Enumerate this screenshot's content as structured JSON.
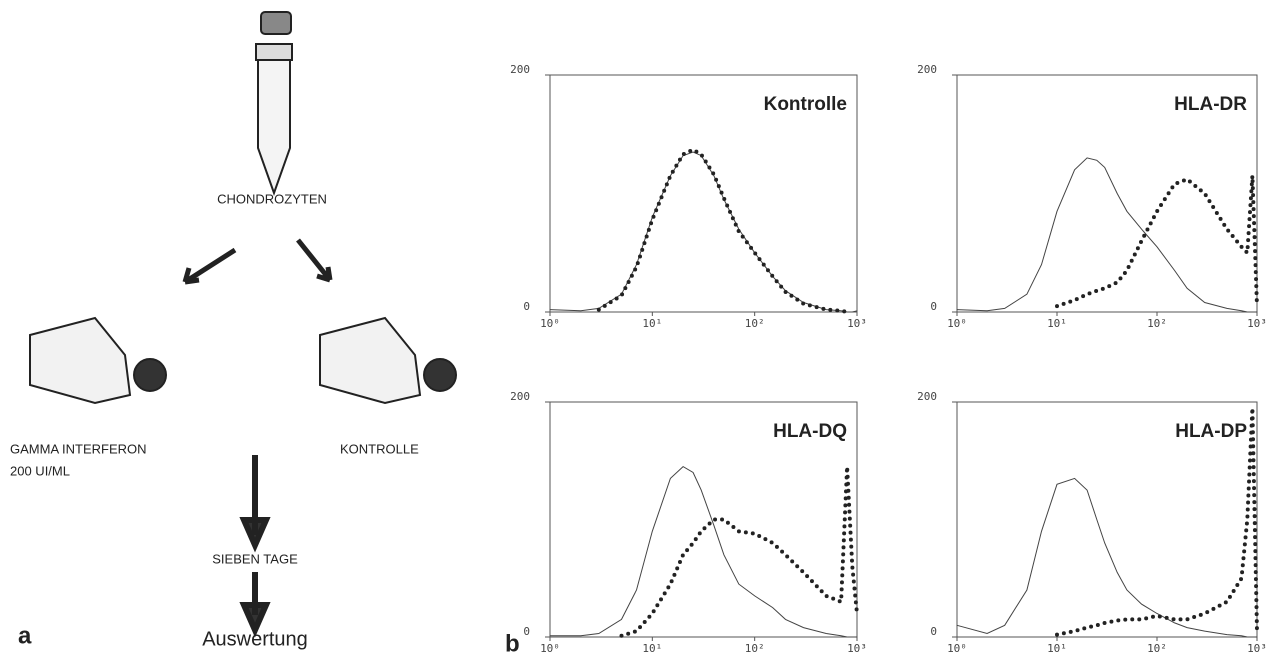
{
  "diagram": {
    "source": "CHONDROZYTEN",
    "left_flask": [
      "GAMMA INTERFERON",
      "200 UI/ML"
    ],
    "right_flask": "KONTROLLE",
    "step": "SIEBEN TAGE",
    "result": "Auswertung",
    "panel_labels": [
      "a",
      "b"
    ]
  },
  "chart_data": [
    {
      "type": "line",
      "title": "Kontrolle",
      "xscale": "log",
      "xlim": [
        1,
        1000
      ],
      "ylim": [
        0,
        200
      ],
      "xticks": [
        {
          "value": 1,
          "label": "10⁰"
        },
        {
          "value": 10,
          "label": "10¹"
        },
        {
          "value": 100,
          "label": "10²"
        },
        {
          "value": 1000,
          "label": "10³"
        }
      ],
      "yticks": [
        0,
        200
      ],
      "x": [
        1,
        2,
        3,
        5,
        7,
        10,
        15,
        20,
        25,
        30,
        40,
        50,
        70,
        100,
        150,
        200,
        300,
        500,
        700,
        800,
        900,
        1000
      ],
      "series": [
        {
          "color": "#444444",
          "style": "solid",
          "values": [
            2,
            1,
            3,
            15,
            40,
            80,
            115,
            132,
            135,
            132,
            115,
            95,
            70,
            50,
            30,
            18,
            8,
            2,
            1,
            0,
            0,
            1
          ]
        },
        {
          "color": "#222222",
          "style": "dotted",
          "values": [
            null,
            null,
            2,
            14,
            38,
            78,
            115,
            133,
            137,
            133,
            116,
            96,
            68,
            50,
            30,
            17,
            7,
            2,
            1,
            0,
            null,
            null
          ]
        }
      ]
    },
    {
      "type": "line",
      "title": "HLA-DR",
      "xscale": "log",
      "xlim": [
        1,
        1000
      ],
      "ylim": [
        0,
        200
      ],
      "xticks": [
        {
          "value": 1,
          "label": "10⁰"
        },
        {
          "value": 10,
          "label": "10¹"
        },
        {
          "value": 100,
          "label": "10²"
        },
        {
          "value": 1000,
          "label": "10³"
        }
      ],
      "yticks": [
        0,
        200
      ],
      "x": [
        1,
        2,
        3,
        5,
        7,
        10,
        15,
        20,
        25,
        30,
        40,
        50,
        70,
        100,
        150,
        200,
        300,
        500,
        700,
        800,
        900,
        1000
      ],
      "series": [
        {
          "color": "#444444",
          "style": "solid",
          "values": [
            2,
            1,
            3,
            15,
            40,
            85,
            120,
            130,
            128,
            122,
            100,
            85,
            70,
            55,
            35,
            20,
            8,
            3,
            1,
            0,
            0,
            0
          ]
        },
        {
          "color": "#222222",
          "style": "dotted",
          "values": [
            null,
            null,
            null,
            null,
            null,
            5,
            10,
            15,
            18,
            20,
            25,
            35,
            60,
            85,
            108,
            112,
            100,
            70,
            55,
            50,
            115,
            5
          ]
        }
      ]
    },
    {
      "type": "line",
      "title": "HLA-DQ",
      "xscale": "log",
      "xlim": [
        1,
        1000
      ],
      "ylim": [
        0,
        200
      ],
      "xticks": [
        {
          "value": 1,
          "label": "10⁰"
        },
        {
          "value": 10,
          "label": "10¹"
        },
        {
          "value": 100,
          "label": "10²"
        },
        {
          "value": 1000,
          "label": "10³"
        }
      ],
      "yticks": [
        0,
        200
      ],
      "x": [
        1,
        2,
        3,
        5,
        7,
        10,
        15,
        20,
        25,
        30,
        40,
        50,
        70,
        100,
        150,
        200,
        300,
        500,
        700,
        800,
        900,
        1000
      ],
      "series": [
        {
          "color": "#444444",
          "style": "solid",
          "values": [
            1,
            1,
            3,
            15,
            40,
            90,
            135,
            145,
            140,
            125,
            95,
            70,
            45,
            35,
            25,
            15,
            8,
            3,
            1,
            0,
            0,
            0
          ]
        },
        {
          "color": "#222222",
          "style": "dotted",
          "values": [
            null,
            null,
            null,
            1,
            5,
            20,
            45,
            70,
            80,
            90,
            100,
            100,
            90,
            88,
            80,
            70,
            55,
            35,
            30,
            145,
            60,
            20
          ]
        }
      ]
    },
    {
      "type": "line",
      "title": "HLA-DP",
      "xscale": "log",
      "xlim": [
        1,
        1000
      ],
      "ylim": [
        0,
        200
      ],
      "xticks": [
        {
          "value": 1,
          "label": "10⁰"
        },
        {
          "value": 10,
          "label": "10¹"
        },
        {
          "value": 100,
          "label": "10²"
        },
        {
          "value": 1000,
          "label": "10³"
        }
      ],
      "yticks": [
        0,
        200
      ],
      "x": [
        1,
        2,
        3,
        5,
        7,
        10,
        15,
        20,
        25,
        30,
        40,
        50,
        70,
        100,
        150,
        200,
        300,
        500,
        700,
        800,
        900,
        1000
      ],
      "series": [
        {
          "color": "#444444",
          "style": "solid",
          "values": [
            10,
            3,
            10,
            40,
            90,
            130,
            135,
            125,
            100,
            80,
            55,
            40,
            28,
            20,
            12,
            8,
            5,
            2,
            1,
            0,
            0,
            0
          ]
        },
        {
          "color": "#222222",
          "style": "dotted",
          "values": [
            null,
            null,
            null,
            null,
            null,
            2,
            5,
            8,
            10,
            12,
            14,
            15,
            15,
            18,
            15,
            15,
            20,
            30,
            50,
            100,
            195,
            5
          ]
        }
      ]
    }
  ]
}
